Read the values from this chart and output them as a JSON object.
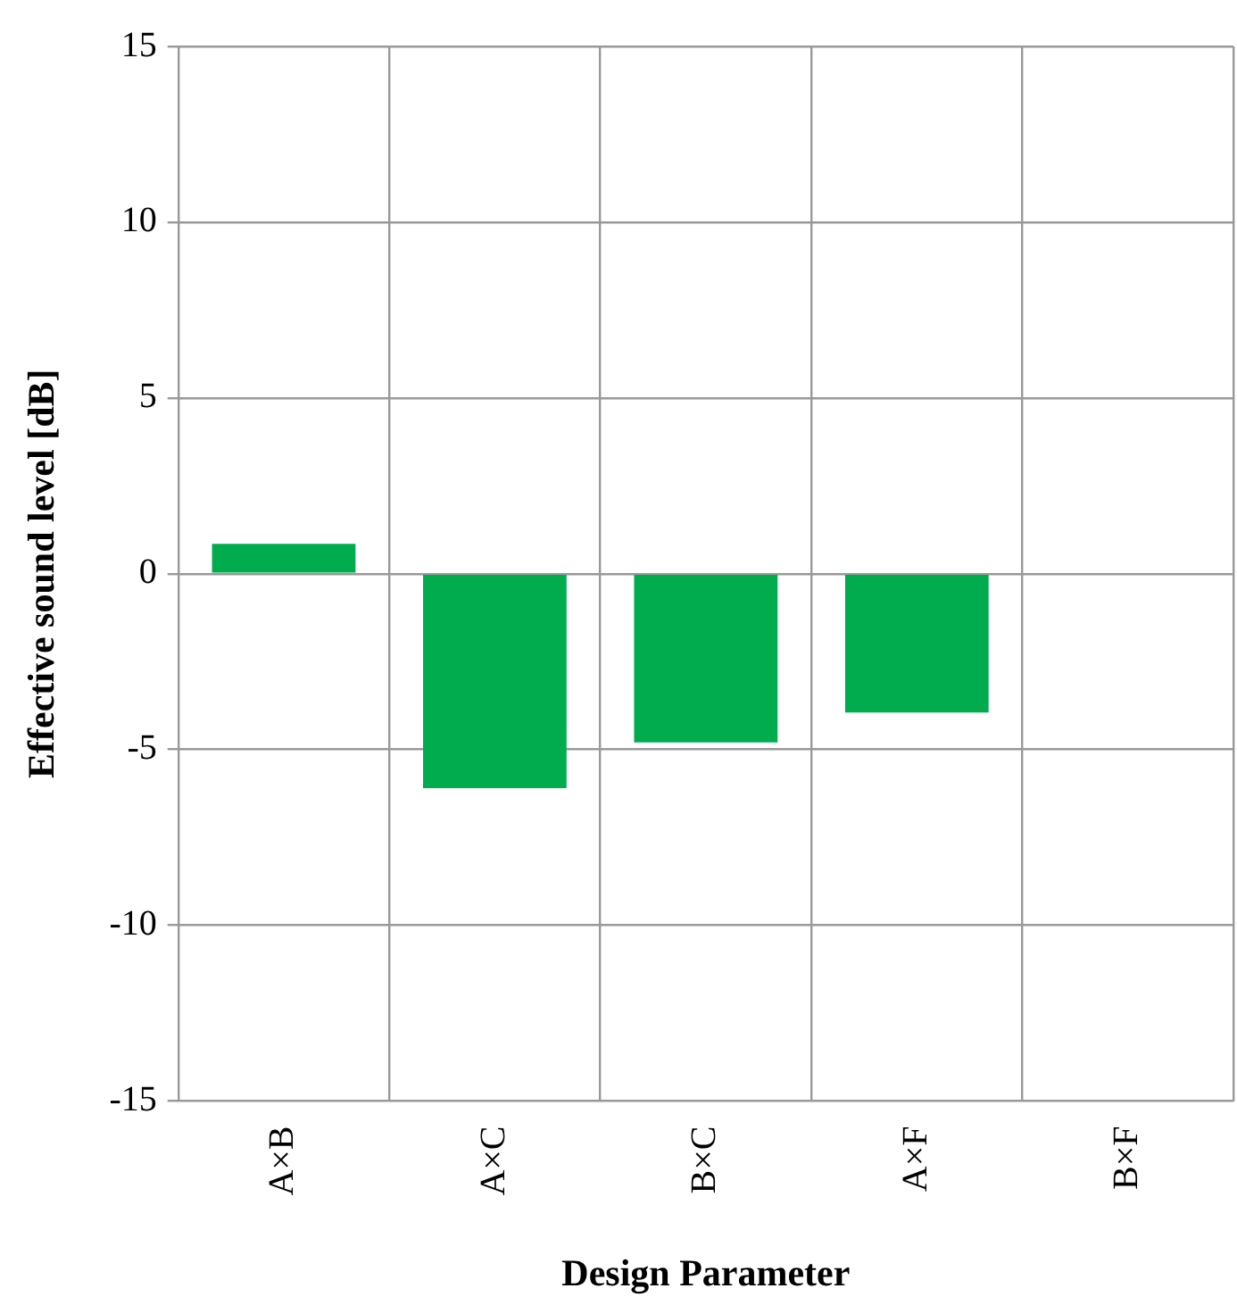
{
  "chart_data": {
    "type": "bar",
    "xlabel": "Design Parameter",
    "ylabel": "Effective sound level [dB]",
    "categories": [
      "A×B",
      "A×C",
      "B×C",
      "A×F",
      "B×F"
    ],
    "values": [
      0.85,
      -6.1,
      -4.8,
      -3.95,
      0
    ],
    "color": "#00ac4e",
    "ylim": [
      -15,
      15
    ],
    "yticks": [
      -15,
      -10,
      -5,
      0,
      5,
      10,
      15
    ],
    "grid": true
  }
}
